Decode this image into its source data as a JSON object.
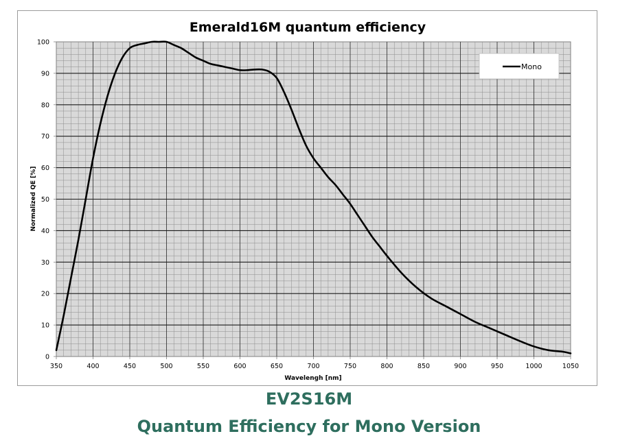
{
  "chart_data": {
    "type": "line",
    "title": "Emerald16M quantum efficiency",
    "xlabel": "Wavelengh [nm]",
    "ylabel": "Normalized QE [%]",
    "xlim": [
      350,
      1050
    ],
    "ylim": [
      0,
      100
    ],
    "xticks": [
      350,
      400,
      450,
      500,
      550,
      600,
      650,
      700,
      750,
      800,
      850,
      900,
      950,
      1000,
      1050
    ],
    "yticks": [
      0,
      10,
      20,
      30,
      40,
      50,
      60,
      70,
      80,
      90,
      100
    ],
    "grid": true,
    "legend_position": "top-right",
    "plot_background": "#d9d9d9",
    "series": [
      {
        "name": "Mono",
        "color": "#000000",
        "x": [
          350,
          360,
          370,
          380,
          390,
          400,
          410,
          420,
          430,
          440,
          450,
          460,
          470,
          480,
          490,
          500,
          510,
          520,
          530,
          540,
          550,
          560,
          570,
          580,
          590,
          600,
          610,
          620,
          630,
          640,
          650,
          660,
          670,
          680,
          690,
          700,
          710,
          720,
          730,
          740,
          750,
          760,
          770,
          780,
          790,
          800,
          820,
          840,
          860,
          880,
          900,
          920,
          940,
          960,
          980,
          1000,
          1020,
          1040,
          1050
        ],
        "y": [
          2,
          13,
          25,
          37,
          50,
          63,
          74,
          83,
          90,
          95,
          98,
          99,
          99.5,
          100,
          100,
          100,
          99,
          98,
          96.5,
          95,
          94,
          93,
          92.5,
          92,
          91.5,
          91,
          91,
          91.2,
          91.2,
          90.5,
          88.5,
          84,
          78.5,
          72.5,
          67,
          63,
          60,
          57,
          54.5,
          51.5,
          48.5,
          45,
          41.5,
          38,
          35,
          32,
          26.5,
          22,
          18.5,
          16,
          13.5,
          11,
          9,
          7,
          5,
          3.2,
          2,
          1.5,
          1
        ]
      }
    ]
  },
  "caption": {
    "line1": "EV2S16M",
    "line2": "Quantum Efficiency for Mono Version"
  }
}
